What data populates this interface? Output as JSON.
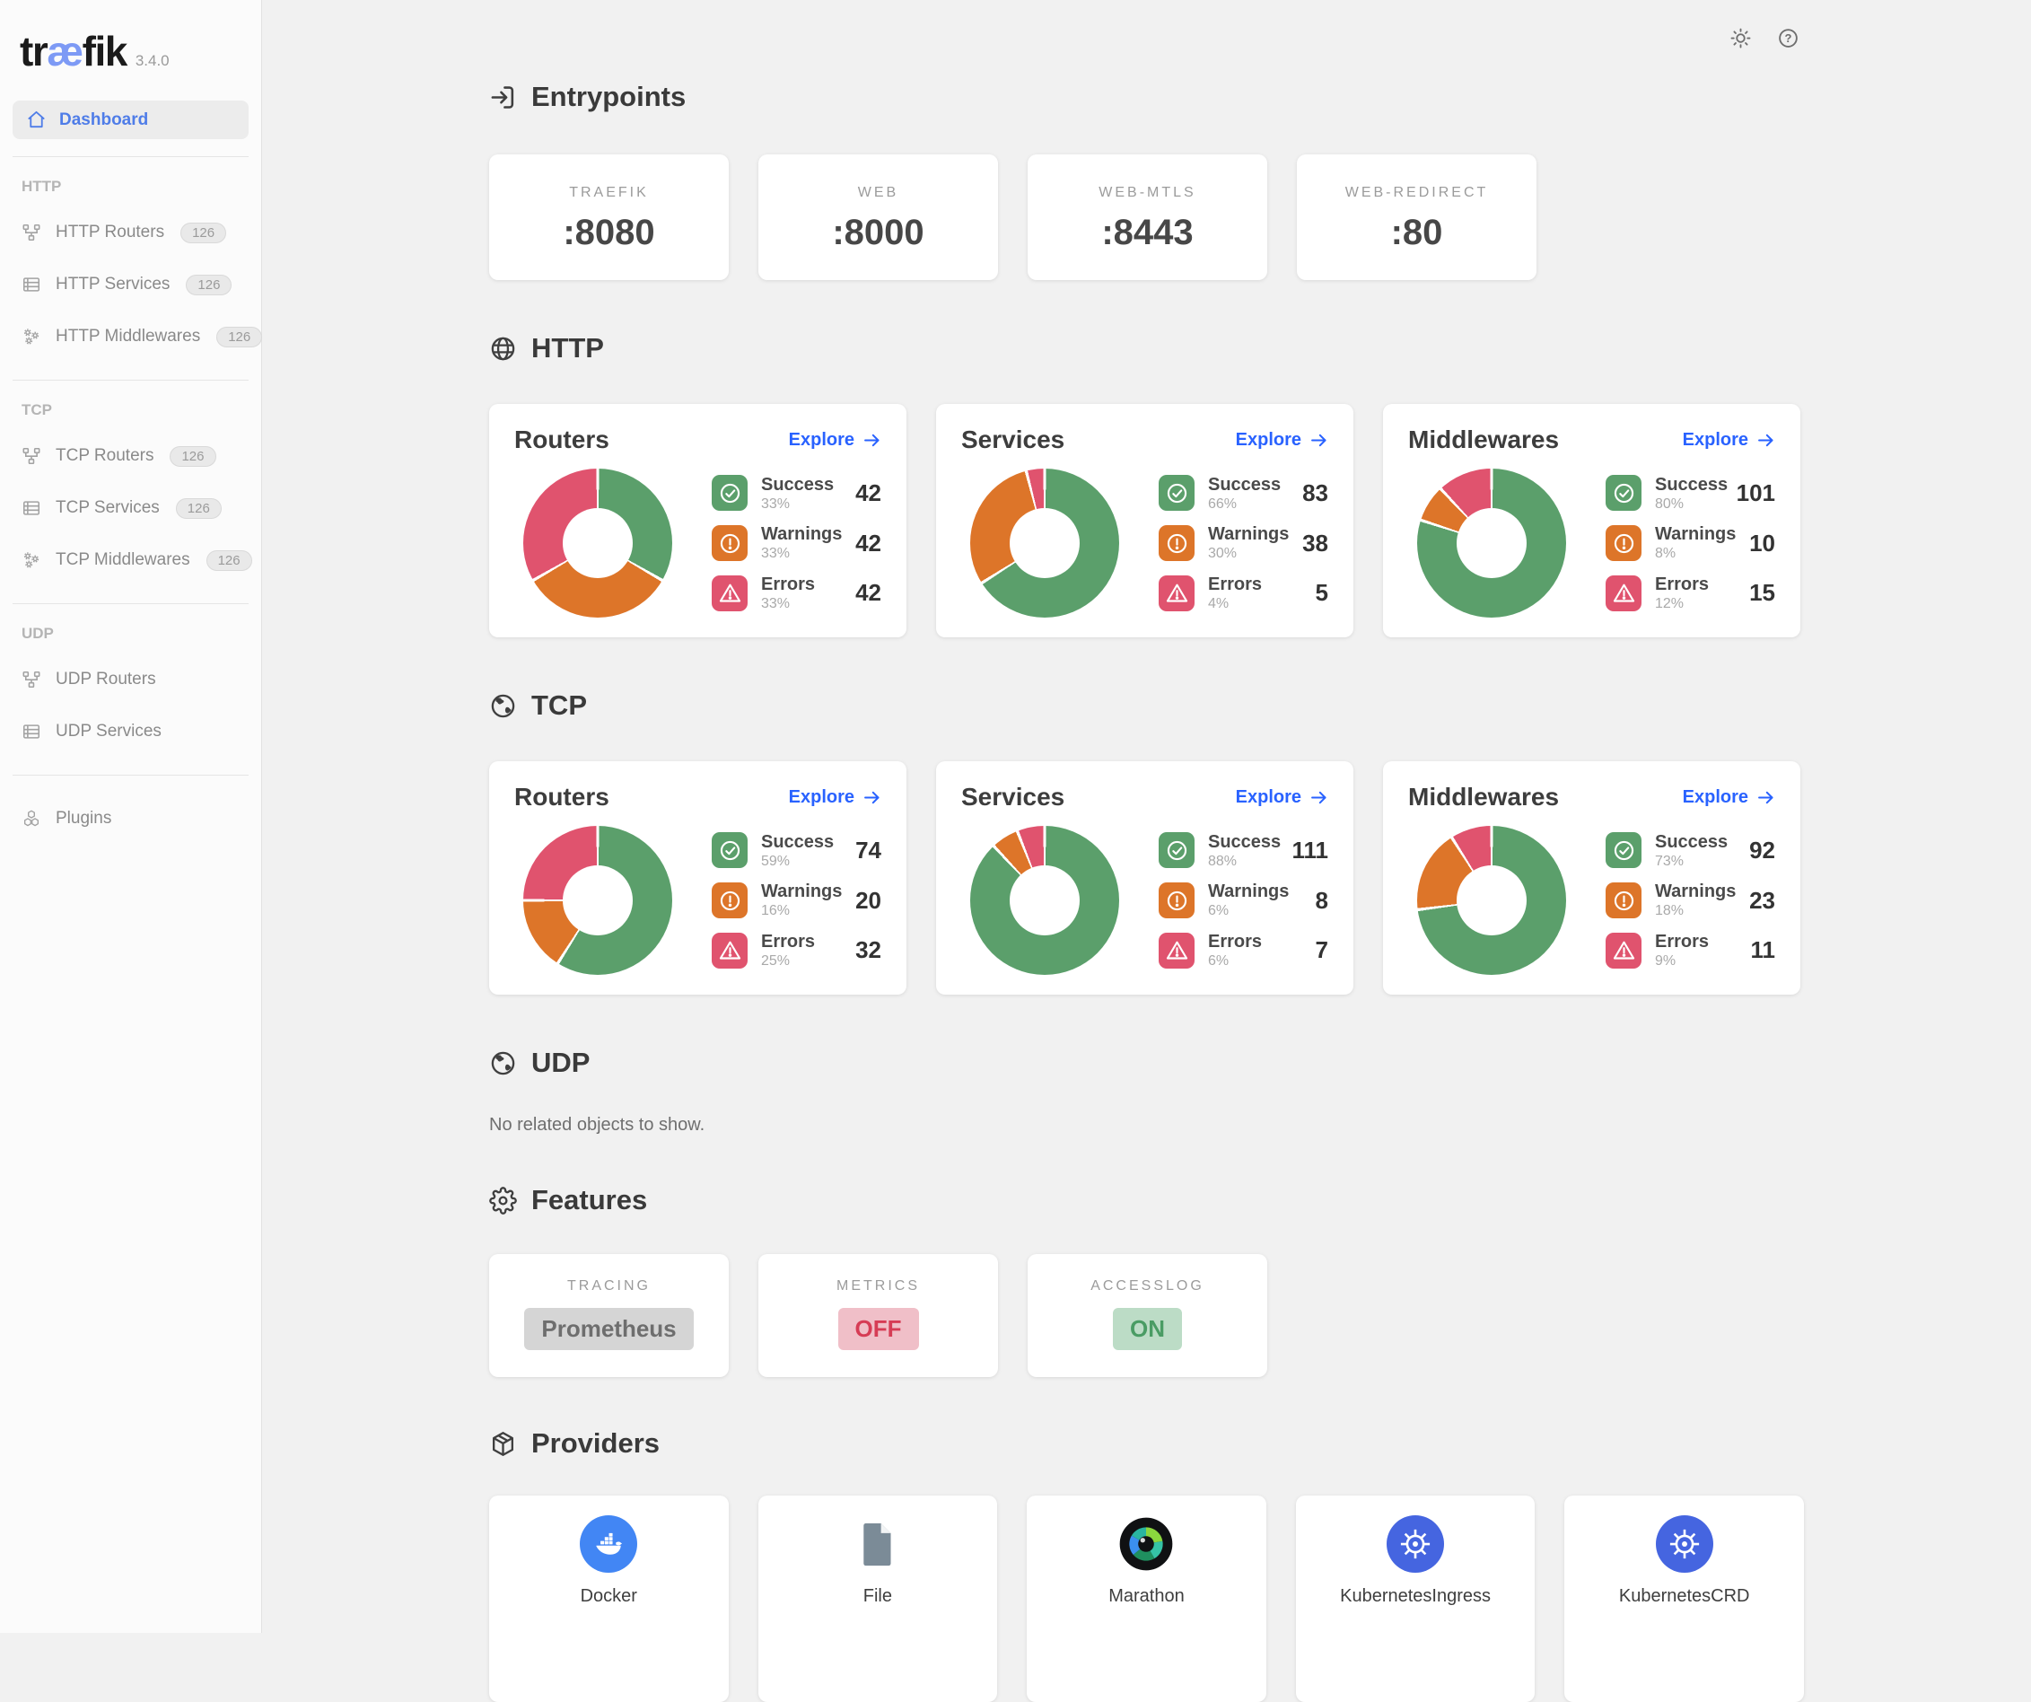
{
  "app": {
    "logo_pre": "tr",
    "logo_ae": "æ",
    "logo_post": "fik",
    "version": "3.4.0"
  },
  "topbar": {
    "theme_icon": "sun-icon",
    "help_icon": "help-icon"
  },
  "sidebar": {
    "dashboard": {
      "label": "Dashboard",
      "icon": "home-icon"
    },
    "groups": [
      {
        "label": "HTTP",
        "items": [
          {
            "label": "HTTP Routers",
            "badge": "126",
            "icon": "routers-icon"
          },
          {
            "label": "HTTP Services",
            "badge": "126",
            "icon": "services-icon"
          },
          {
            "label": "HTTP Middlewares",
            "badge": "126",
            "icon": "middlewares-icon"
          }
        ]
      },
      {
        "label": "TCP",
        "items": [
          {
            "label": "TCP Routers",
            "badge": "126",
            "icon": "routers-icon"
          },
          {
            "label": "TCP Services",
            "badge": "126",
            "icon": "services-icon"
          },
          {
            "label": "TCP Middlewares",
            "badge": "126",
            "icon": "middlewares-icon"
          }
        ]
      },
      {
        "label": "UDP",
        "items": [
          {
            "label": "UDP Routers",
            "icon": "routers-icon"
          },
          {
            "label": "UDP Services",
            "icon": "services-icon"
          }
        ]
      }
    ],
    "plugins": {
      "label": "Plugins",
      "icon": "plugins-icon"
    }
  },
  "entrypoints": {
    "title": "Entrypoints",
    "icon": "entrypoints-icon",
    "cards": [
      {
        "label": "TRAEFIK",
        "value": ":8080"
      },
      {
        "label": "WEB",
        "value": ":8000"
      },
      {
        "label": "WEB-MTLS",
        "value": ":8443"
      },
      {
        "label": "WEB-REDIRECT",
        "value": ":80"
      }
    ]
  },
  "protocol_sections": [
    {
      "title": "HTTP",
      "icon": "globe-wire-icon",
      "cards": [
        {
          "title": "Routers",
          "explore_label": "Explore",
          "stats": [
            {
              "label": "Success",
              "pct": "33%",
              "value": "42"
            },
            {
              "label": "Warnings",
              "pct": "33%",
              "value": "42"
            },
            {
              "label": "Errors",
              "pct": "33%",
              "value": "42"
            }
          ]
        },
        {
          "title": "Services",
          "explore_label": "Explore",
          "stats": [
            {
              "label": "Success",
              "pct": "66%",
              "value": "83"
            },
            {
              "label": "Warnings",
              "pct": "30%",
              "value": "38"
            },
            {
              "label": "Errors",
              "pct": "4%",
              "value": "5"
            }
          ]
        },
        {
          "title": "Middlewares",
          "explore_label": "Explore",
          "stats": [
            {
              "label": "Success",
              "pct": "80%",
              "value": "101"
            },
            {
              "label": "Warnings",
              "pct": "8%",
              "value": "10"
            },
            {
              "label": "Errors",
              "pct": "12%",
              "value": "15"
            }
          ]
        }
      ]
    },
    {
      "title": "TCP",
      "icon": "globe-earth-icon",
      "cards": [
        {
          "title": "Routers",
          "explore_label": "Explore",
          "stats": [
            {
              "label": "Success",
              "pct": "59%",
              "value": "74"
            },
            {
              "label": "Warnings",
              "pct": "16%",
              "value": "20"
            },
            {
              "label": "Errors",
              "pct": "25%",
              "value": "32"
            }
          ]
        },
        {
          "title": "Services",
          "explore_label": "Explore",
          "stats": [
            {
              "label": "Success",
              "pct": "88%",
              "value": "111"
            },
            {
              "label": "Warnings",
              "pct": "6%",
              "value": "8"
            },
            {
              "label": "Errors",
              "pct": "6%",
              "value": "7"
            }
          ]
        },
        {
          "title": "Middlewares",
          "explore_label": "Explore",
          "stats": [
            {
              "label": "Success",
              "pct": "73%",
              "value": "92"
            },
            {
              "label": "Warnings",
              "pct": "18%",
              "value": "23"
            },
            {
              "label": "Errors",
              "pct": "9%",
              "value": "11"
            }
          ]
        }
      ]
    }
  ],
  "udp_section": {
    "title": "UDP",
    "icon": "globe-earth-icon",
    "empty_text": "No related objects to show."
  },
  "features": {
    "title": "Features",
    "icon": "gear-icon",
    "cards": [
      {
        "label": "TRACING",
        "value": "Prometheus",
        "state": "neutral"
      },
      {
        "label": "METRICS",
        "value": "OFF",
        "state": "off"
      },
      {
        "label": "ACCESSLOG",
        "value": "ON",
        "state": "on"
      }
    ]
  },
  "providers": {
    "title": "Providers",
    "icon": "package-icon",
    "cards": [
      {
        "label": "Docker",
        "icon": "docker-icon"
      },
      {
        "label": "File",
        "icon": "file-icon"
      },
      {
        "label": "Marathon",
        "icon": "marathon-icon"
      },
      {
        "label": "KubernetesIngress",
        "icon": "kubernetes-icon"
      },
      {
        "label": "KubernetesCRD",
        "icon": "kubernetes-icon"
      }
    ]
  },
  "colors": {
    "success": "#5b9f6b",
    "warning": "#dd7529",
    "error": "#e0536e",
    "link": "#2962ff",
    "accent": "#4f7de8"
  },
  "chart_data": [
    {
      "type": "pie",
      "title": "HTTP Routers",
      "labels": [
        "Success",
        "Warnings",
        "Errors"
      ],
      "values_pct": [
        33,
        33,
        33
      ],
      "counts": [
        42,
        42,
        42
      ],
      "colors": [
        "#5b9f6b",
        "#dd7529",
        "#e0536e"
      ]
    },
    {
      "type": "pie",
      "title": "HTTP Services",
      "labels": [
        "Success",
        "Warnings",
        "Errors"
      ],
      "values_pct": [
        66,
        30,
        4
      ],
      "counts": [
        83,
        38,
        5
      ],
      "colors": [
        "#5b9f6b",
        "#dd7529",
        "#e0536e"
      ]
    },
    {
      "type": "pie",
      "title": "HTTP Middlewares",
      "labels": [
        "Success",
        "Warnings",
        "Errors"
      ],
      "values_pct": [
        80,
        8,
        12
      ],
      "counts": [
        101,
        10,
        15
      ],
      "colors": [
        "#5b9f6b",
        "#dd7529",
        "#e0536e"
      ]
    },
    {
      "type": "pie",
      "title": "TCP Routers",
      "labels": [
        "Success",
        "Warnings",
        "Errors"
      ],
      "values_pct": [
        59,
        16,
        25
      ],
      "counts": [
        74,
        20,
        32
      ],
      "colors": [
        "#5b9f6b",
        "#dd7529",
        "#e0536e"
      ]
    },
    {
      "type": "pie",
      "title": "TCP Services",
      "labels": [
        "Success",
        "Warnings",
        "Errors"
      ],
      "values_pct": [
        88,
        6,
        6
      ],
      "counts": [
        111,
        8,
        7
      ],
      "colors": [
        "#5b9f6b",
        "#dd7529",
        "#e0536e"
      ]
    },
    {
      "type": "pie",
      "title": "TCP Middlewares",
      "labels": [
        "Success",
        "Warnings",
        "Errors"
      ],
      "values_pct": [
        73,
        18,
        9
      ],
      "counts": [
        92,
        23,
        11
      ],
      "colors": [
        "#5b9f6b",
        "#dd7529",
        "#e0536e"
      ]
    }
  ]
}
